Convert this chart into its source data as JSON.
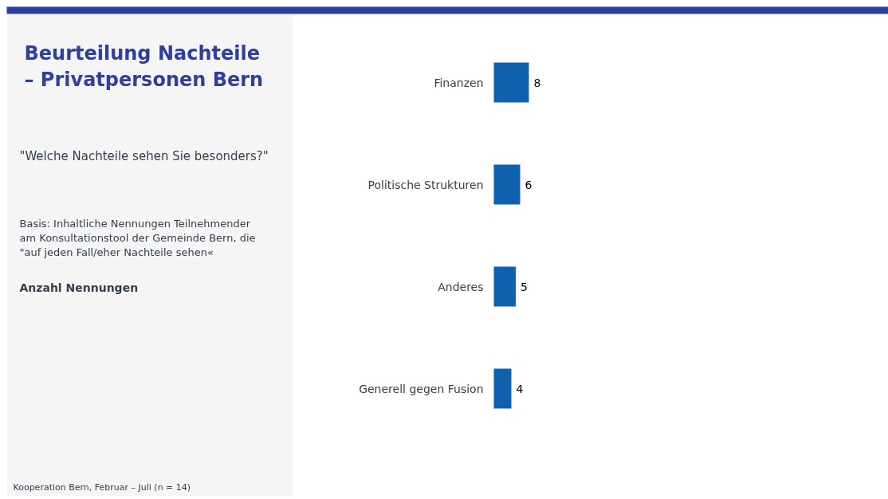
{
  "chart_data": {
    "type": "bar",
    "orientation": "horizontal",
    "title": "Beurteilung Nachteile – Privatpersonen Bern",
    "subtitle": "\"Welche Nachteile sehen Sie besonders?\"",
    "annotations": [
      "Basis: Inhaltliche Nennungen Teilnehmender am Konsultationstool der Gemeinde Bern, die \"auf jeden Fall/eher Nachteile sehen«",
      "Anzahl Nennungen",
      "Kooperation Bern, Februar – Juli (n = 14)"
    ],
    "categories": [
      "Finanzen",
      "Politische Strukturen",
      "Anderes",
      "Generell gegen Fusion"
    ],
    "values": [
      8,
      6,
      5,
      4
    ],
    "color": "#1060b0",
    "data_labels": true
  }
}
